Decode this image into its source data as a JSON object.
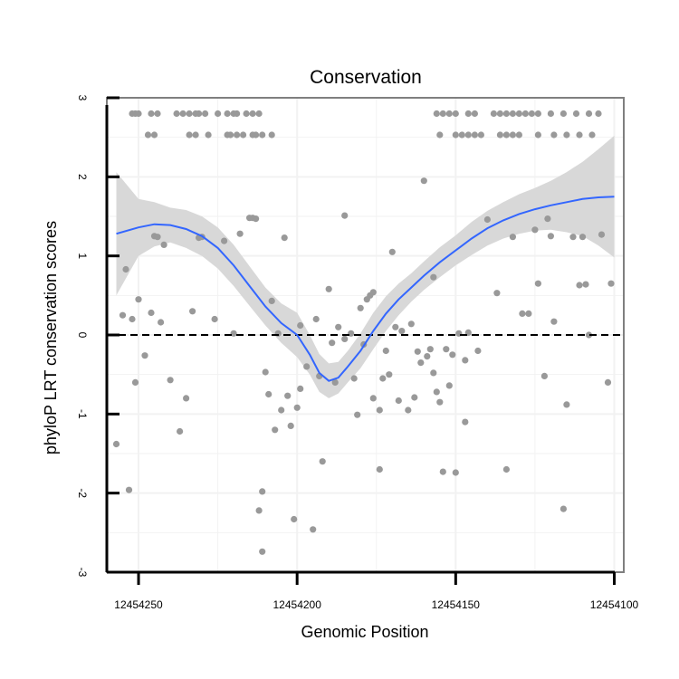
{
  "chart_data": {
    "type": "scatter",
    "title": "Conservation",
    "xlabel": "Genomic Position",
    "ylabel": "phyloP LRT conservation scores",
    "x_reversed": true,
    "xlim": [
      12454260,
      12454097
    ],
    "ylim": [
      -3,
      3
    ],
    "x_ticks": [
      12454250,
      12454200,
      12454150,
      12454100
    ],
    "x_tick_labels": [
      "12454250",
      "12454200",
      "12454150",
      "12454100"
    ],
    "y_ticks": [
      3,
      2,
      1,
      0,
      -1,
      -2,
      -3
    ],
    "y_tick_labels": [
      "3",
      "2",
      "1",
      "0",
      "-1",
      "-2",
      "-3"
    ],
    "reference_line": {
      "y": 0,
      "style": "dashed"
    },
    "colors": {
      "points": "#999999",
      "smooth_line": "#3366ff",
      "ribbon": "#d6d6d6",
      "panel_border": "#7f7f7f",
      "grid": "#f2f2f2"
    },
    "points": [
      [
        12454252,
        2.8
      ],
      [
        12454251,
        2.8
      ],
      [
        12454250,
        2.8
      ],
      [
        12454246,
        2.8
      ],
      [
        12454244,
        2.8
      ],
      [
        12454238,
        2.8
      ],
      [
        12454236,
        2.8
      ],
      [
        12454234,
        2.8
      ],
      [
        12454232,
        2.8
      ],
      [
        12454231,
        2.8
      ],
      [
        12454229,
        2.8
      ],
      [
        12454225,
        2.8
      ],
      [
        12454222,
        2.8
      ],
      [
        12454220,
        2.8
      ],
      [
        12454219,
        2.8
      ],
      [
        12454216,
        2.8
      ],
      [
        12454214,
        2.8
      ],
      [
        12454212,
        2.8
      ],
      [
        12454247,
        2.53
      ],
      [
        12454245,
        2.53
      ],
      [
        12454234,
        2.53
      ],
      [
        12454232,
        2.53
      ],
      [
        12454228,
        2.53
      ],
      [
        12454222,
        2.53
      ],
      [
        12454221,
        2.53
      ],
      [
        12454219,
        2.53
      ],
      [
        12454217,
        2.53
      ],
      [
        12454214,
        2.53
      ],
      [
        12454213,
        2.53
      ],
      [
        12454211,
        2.53
      ],
      [
        12454208,
        2.53
      ],
      [
        12454156,
        2.8
      ],
      [
        12454154,
        2.8
      ],
      [
        12454152,
        2.8
      ],
      [
        12454150,
        2.8
      ],
      [
        12454146,
        2.8
      ],
      [
        12454144,
        2.8
      ],
      [
        12454138,
        2.8
      ],
      [
        12454136,
        2.8
      ],
      [
        12454134,
        2.8
      ],
      [
        12454132,
        2.8
      ],
      [
        12454130,
        2.8
      ],
      [
        12454128,
        2.8
      ],
      [
        12454126,
        2.8
      ],
      [
        12454124,
        2.8
      ],
      [
        12454120,
        2.8
      ],
      [
        12454116,
        2.8
      ],
      [
        12454112,
        2.8
      ],
      [
        12454108,
        2.8
      ],
      [
        12454105,
        2.8
      ],
      [
        12454155,
        2.53
      ],
      [
        12454150,
        2.53
      ],
      [
        12454148,
        2.53
      ],
      [
        12454146,
        2.53
      ],
      [
        12454144,
        2.53
      ],
      [
        12454142,
        2.53
      ],
      [
        12454136,
        2.53
      ],
      [
        12454134,
        2.53
      ],
      [
        12454132,
        2.53
      ],
      [
        12454130,
        2.53
      ],
      [
        12454124,
        2.53
      ],
      [
        12454119,
        2.53
      ],
      [
        12454115,
        2.53
      ],
      [
        12454111,
        2.53
      ],
      [
        12454107,
        2.53
      ],
      [
        12454257,
        -1.38
      ],
      [
        12454255,
        0.25
      ],
      [
        12454254,
        0.83
      ],
      [
        12454252,
        0.2
      ],
      [
        12454251,
        -0.6
      ],
      [
        12454253,
        -1.96
      ],
      [
        12454250,
        0.45
      ],
      [
        12454248,
        -0.26
      ],
      [
        12454246,
        0.28
      ],
      [
        12454245,
        1.25
      ],
      [
        12454244,
        1.24
      ],
      [
        12454243,
        0.16
      ],
      [
        12454242,
        1.14
      ],
      [
        12454240,
        -0.57
      ],
      [
        12454237,
        -1.22
      ],
      [
        12454235,
        -0.8
      ],
      [
        12454233,
        0.3
      ],
      [
        12454231,
        1.23
      ],
      [
        12454230,
        1.24
      ],
      [
        12454226,
        0.2
      ],
      [
        12454223,
        1.19
      ],
      [
        12454220,
        0.02
      ],
      [
        12454218,
        1.28
      ],
      [
        12454215,
        1.48
      ],
      [
        12454214,
        1.48
      ],
      [
        12454213,
        1.47
      ],
      [
        12454212,
        -2.22
      ],
      [
        12454211,
        -1.98
      ],
      [
        12454211,
        -2.74
      ],
      [
        12454210,
        -0.47
      ],
      [
        12454209,
        -0.75
      ],
      [
        12454208,
        0.43
      ],
      [
        12454207,
        -1.2
      ],
      [
        12454206,
        0.02
      ],
      [
        12454205,
        -0.95
      ],
      [
        12454204,
        1.23
      ],
      [
        12454203,
        -0.77
      ],
      [
        12454202,
        -1.15
      ],
      [
        12454201,
        -2.33
      ],
      [
        12454200,
        -0.92
      ],
      [
        12454199,
        -0.68
      ],
      [
        12454199,
        0.12
      ],
      [
        12454197,
        -0.4
      ],
      [
        12454195,
        -2.46
      ],
      [
        12454194,
        0.2
      ],
      [
        12454193,
        -0.52
      ],
      [
        12454192,
        -1.6
      ],
      [
        12454190,
        0.58
      ],
      [
        12454189,
        -0.1
      ],
      [
        12454188,
        -0.6
      ],
      [
        12454187,
        0.1
      ],
      [
        12454185,
        1.51
      ],
      [
        12454185,
        -0.05
      ],
      [
        12454183,
        0.02
      ],
      [
        12454182,
        -0.55
      ],
      [
        12454181,
        -1.01
      ],
      [
        12454180,
        0.34
      ],
      [
        12454179,
        -0.12
      ],
      [
        12454178,
        0.45
      ],
      [
        12454177,
        0.5
      ],
      [
        12454176,
        0.54
      ],
      [
        12454176,
        -0.8
      ],
      [
        12454174,
        -0.95
      ],
      [
        12454174,
        -1.7
      ],
      [
        12454173,
        -0.55
      ],
      [
        12454172,
        -0.2
      ],
      [
        12454171,
        -0.5
      ],
      [
        12454170,
        1.05
      ],
      [
        12454169,
        0.1
      ],
      [
        12454168,
        -0.83
      ],
      [
        12454167,
        0.05
      ],
      [
        12454165,
        -0.95
      ],
      [
        12454164,
        0.14
      ],
      [
        12454163,
        -0.79
      ],
      [
        12454162,
        -0.21
      ],
      [
        12454161,
        -0.35
      ],
      [
        12454160,
        1.95
      ],
      [
        12454159,
        -0.27
      ],
      [
        12454158,
        -0.18
      ],
      [
        12454157,
        0.73
      ],
      [
        12454157,
        -0.48
      ],
      [
        12454156,
        -0.72
      ],
      [
        12454155,
        -0.85
      ],
      [
        12454154,
        -1.73
      ],
      [
        12454153,
        -0.18
      ],
      [
        12454152,
        -0.64
      ],
      [
        12454151,
        -0.25
      ],
      [
        12454150,
        -1.74
      ],
      [
        12454149,
        0.02
      ],
      [
        12454147,
        -1.1
      ],
      [
        12454147,
        -0.32
      ],
      [
        12454146,
        0.03
      ],
      [
        12454143,
        -0.2
      ],
      [
        12454140,
        1.46
      ],
      [
        12454137,
        0.53
      ],
      [
        12454134,
        -1.7
      ],
      [
        12454132,
        1.24
      ],
      [
        12454129,
        0.27
      ],
      [
        12454127,
        0.27
      ],
      [
        12454125,
        1.33
      ],
      [
        12454124,
        0.65
      ],
      [
        12454122,
        -0.52
      ],
      [
        12454121,
        1.47
      ],
      [
        12454120,
        1.25
      ],
      [
        12454119,
        0.17
      ],
      [
        12454116,
        -2.2
      ],
      [
        12454115,
        -0.88
      ],
      [
        12454113,
        1.24
      ],
      [
        12454111,
        0.63
      ],
      [
        12454109,
        0.64
      ],
      [
        12454108,
        0.0
      ],
      [
        12454104,
        1.27
      ],
      [
        12454102,
        -0.6
      ],
      [
        12454101,
        0.65
      ],
      [
        12454110,
        1.24
      ]
    ],
    "smooth": {
      "label": "loess fit",
      "x": [
        12454257,
        12454250,
        12454245,
        12454240,
        12454235,
        12454230,
        12454225,
        12454220,
        12454215,
        12454210,
        12454205,
        12454200,
        12454196,
        12454193,
        12454190,
        12454187,
        12454184,
        12454180,
        12454176,
        12454172,
        12454168,
        12454164,
        12454160,
        12454155,
        12454150,
        12454145,
        12454140,
        12454135,
        12454130,
        12454125,
        12454120,
        12454115,
        12454110,
        12454105,
        12454100
      ],
      "y": [
        1.28,
        1.36,
        1.4,
        1.39,
        1.34,
        1.25,
        1.1,
        0.88,
        0.62,
        0.36,
        0.15,
        0.0,
        -0.25,
        -0.48,
        -0.58,
        -0.54,
        -0.4,
        -0.2,
        0.05,
        0.27,
        0.45,
        0.6,
        0.75,
        0.92,
        1.07,
        1.22,
        1.35,
        1.45,
        1.53,
        1.59,
        1.64,
        1.68,
        1.72,
        1.74,
        1.75
      ],
      "lower": [
        0.5,
        1.0,
        1.12,
        1.17,
        1.1,
        1.0,
        0.84,
        0.62,
        0.37,
        0.12,
        -0.1,
        -0.28,
        -0.5,
        -0.72,
        -0.8,
        -0.74,
        -0.6,
        -0.42,
        -0.18,
        0.05,
        0.25,
        0.42,
        0.57,
        0.73,
        0.88,
        1.01,
        1.13,
        1.22,
        1.28,
        1.32,
        1.33,
        1.3,
        1.25,
        1.13,
        0.98
      ],
      "upper": [
        2.06,
        1.72,
        1.68,
        1.61,
        1.58,
        1.5,
        1.36,
        1.14,
        0.87,
        0.6,
        0.4,
        0.28,
        0.0,
        -0.24,
        -0.36,
        -0.34,
        -0.2,
        0.02,
        0.28,
        0.49,
        0.65,
        0.78,
        0.93,
        1.11,
        1.26,
        1.43,
        1.57,
        1.68,
        1.78,
        1.86,
        1.95,
        2.06,
        2.19,
        2.35,
        2.52
      ]
    }
  }
}
